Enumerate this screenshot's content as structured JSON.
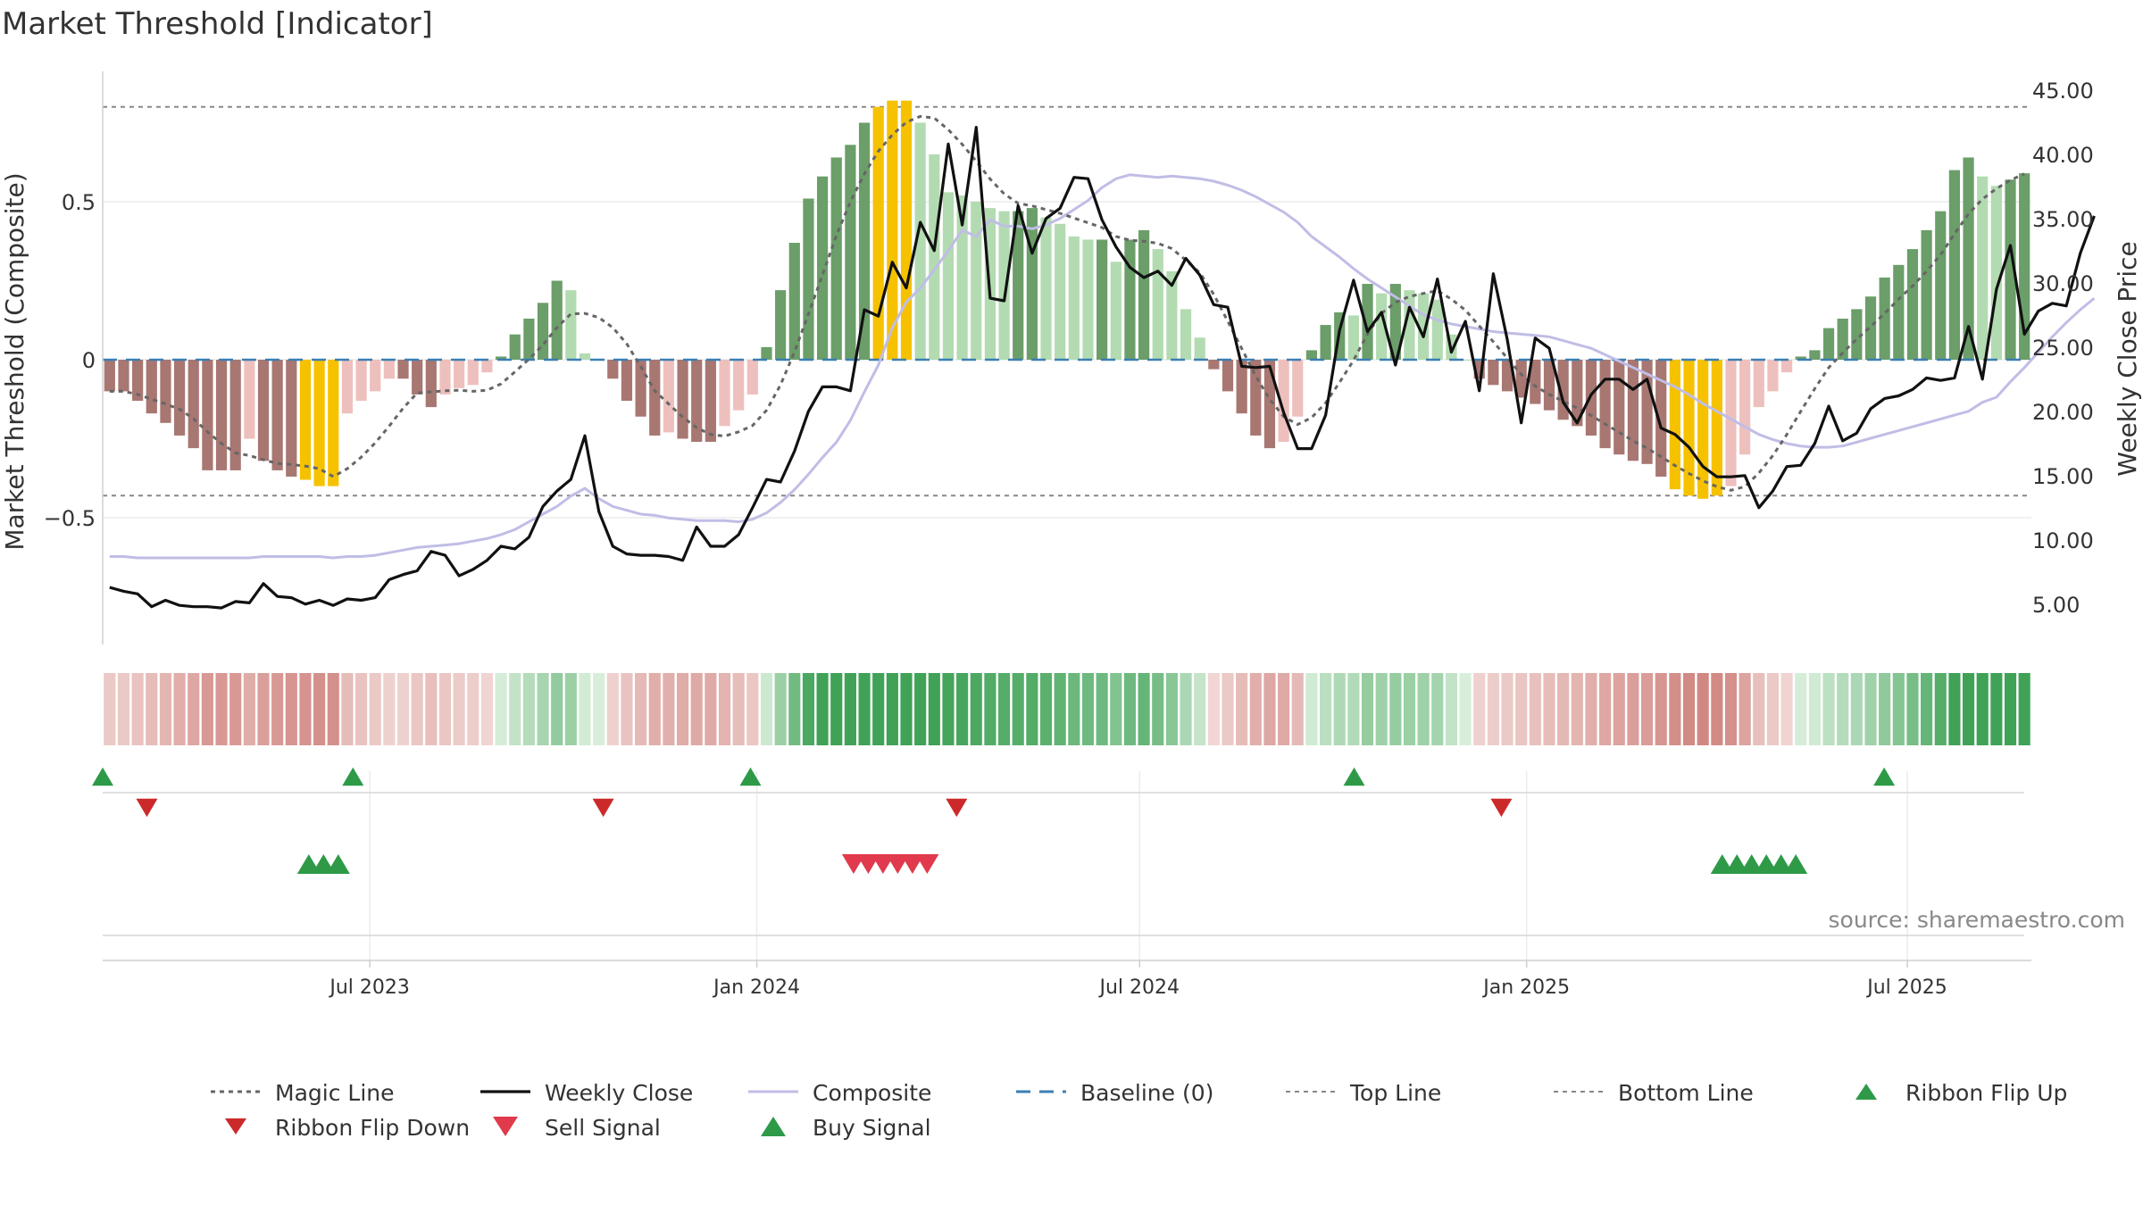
{
  "title": "Market Threshold [Indicator]",
  "source": "source: sharemaestro.com",
  "chart_data": {
    "type": "bar",
    "y_left": {
      "label": "Market Threshold (Composite)",
      "ticks": [
        {
          "value": 0.5,
          "label": "0.5"
        },
        {
          "value": 0,
          "label": "0"
        },
        {
          "value": -0.5,
          "label": "−0.5"
        }
      ],
      "range": [
        -0.9,
        0.9
      ]
    },
    "y_right": {
      "label": "Weekly Close Price",
      "ticks": [
        "45.00",
        "40.00",
        "35.00",
        "30.00",
        "25.00",
        "20.00",
        "15.00",
        "10.00",
        "5.00"
      ],
      "tick_values": [
        45,
        40,
        35,
        30,
        25,
        20,
        15,
        10,
        5
      ],
      "range": [
        2.0,
        47.0
      ]
    },
    "x_axis": {
      "start": "2023-02-24",
      "end": "2025-08-29",
      "ticks": [
        {
          "label": "Jul 2023",
          "date": "2023-07-01"
        },
        {
          "label": "Jan 2024",
          "date": "2024-01-01"
        },
        {
          "label": "Jul 2024",
          "date": "2024-07-01"
        },
        {
          "label": "Jan 2025",
          "date": "2025-01-01"
        },
        {
          "label": "Jul 2025",
          "date": "2025-07-01"
        }
      ]
    },
    "top_line": 0.8,
    "bottom_line": -0.43,
    "composite_bars": [
      -0.1,
      -0.1,
      -0.13,
      -0.17,
      -0.2,
      -0.24,
      -0.28,
      -0.35,
      -0.35,
      -0.35,
      -0.25,
      -0.32,
      -0.35,
      -0.37,
      -0.38,
      -0.4,
      -0.4,
      -0.17,
      -0.13,
      -0.1,
      -0.06,
      -0.06,
      -0.11,
      -0.15,
      -0.11,
      -0.09,
      -0.08,
      -0.04,
      0.01,
      0.08,
      0.13,
      0.18,
      0.25,
      0.22,
      0.02,
      0.0,
      -0.06,
      -0.13,
      -0.18,
      -0.24,
      -0.23,
      -0.25,
      -0.26,
      -0.26,
      -0.21,
      -0.16,
      -0.11,
      0.04,
      0.22,
      0.37,
      0.51,
      0.58,
      0.64,
      0.68,
      0.75,
      0.8,
      0.82,
      0.82,
      0.75,
      0.65,
      0.53,
      0.52,
      0.5,
      0.48,
      0.47,
      0.47,
      0.48,
      0.45,
      0.43,
      0.39,
      0.38,
      0.38,
      0.31,
      0.38,
      0.41,
      0.35,
      0.28,
      0.16,
      0.07,
      -0.03,
      -0.1,
      -0.17,
      -0.24,
      -0.28,
      -0.26,
      -0.18,
      0.03,
      0.11,
      0.15,
      0.14,
      0.24,
      0.21,
      0.24,
      0.22,
      0.21,
      0.19,
      0.08,
      0.0,
      -0.06,
      -0.08,
      -0.1,
      -0.12,
      -0.14,
      -0.16,
      -0.19,
      -0.21,
      -0.24,
      -0.28,
      -0.3,
      -0.32,
      -0.33,
      -0.37,
      -0.41,
      -0.43,
      -0.44,
      -0.43,
      -0.4,
      -0.3,
      -0.15,
      -0.1,
      -0.04,
      0.01,
      0.03,
      0.1,
      0.13,
      0.16,
      0.2,
      0.26,
      0.3,
      0.35,
      0.41,
      0.47,
      0.6,
      0.64,
      0.58,
      0.55,
      0.57,
      0.59
    ],
    "weekly_close": [
      6.3,
      6.0,
      5.8,
      4.8,
      5.3,
      4.9,
      4.8,
      4.8,
      4.7,
      5.2,
      5.1,
      6.6,
      5.6,
      5.5,
      5.0,
      5.3,
      4.9,
      5.4,
      5.3,
      5.5,
      6.9,
      7.3,
      7.6,
      9.1,
      8.8,
      7.2,
      7.7,
      8.4,
      9.5,
      9.3,
      10.2,
      12.6,
      13.8,
      14.7,
      18.1,
      12.2,
      9.5,
      8.9,
      8.8,
      8.8,
      8.7,
      8.4,
      11.0,
      9.5,
      9.5,
      10.4,
      12.5,
      14.7,
      14.5,
      16.9,
      20.0,
      21.9,
      21.9,
      21.6,
      27.9,
      27.4,
      31.6,
      29.6,
      34.7,
      32.5,
      40.8,
      34.5,
      42.1,
      28.8,
      28.6,
      36.0,
      32.3,
      35.0,
      35.8,
      38.2,
      38.1,
      34.9,
      32.8,
      31.2,
      30.4,
      30.9,
      29.8,
      31.9,
      30.6,
      28.3,
      28.1,
      23.5,
      23.4,
      23.5,
      19.9,
      17.1,
      17.1,
      19.7,
      26.3,
      30.2,
      26.2,
      27.7,
      23.6,
      28.1,
      25.8,
      30.3,
      24.6,
      27.0,
      21.6,
      30.7,
      25.6,
      19.1,
      25.7,
      24.9,
      20.7,
      19.1,
      21.3,
      22.5,
      22.5,
      21.7,
      22.5,
      18.7,
      18.2,
      17.2,
      15.7,
      14.9,
      14.9,
      15.0,
      12.5,
      13.8,
      15.7,
      15.8,
      17.5,
      20.4,
      17.7,
      18.3,
      20.2,
      21.0,
      21.2,
      21.7,
      22.6,
      22.4,
      22.6,
      26.6,
      22.5,
      29.5,
      32.9,
      26.0,
      27.8,
      28.4,
      28.2,
      32.3,
      35.2
    ],
    "composite_line": [
      8.7,
      8.7,
      8.6,
      8.6,
      8.6,
      8.6,
      8.6,
      8.6,
      8.6,
      8.6,
      8.6,
      8.7,
      8.7,
      8.7,
      8.7,
      8.7,
      8.6,
      8.7,
      8.7,
      8.8,
      9.0,
      9.2,
      9.4,
      9.5,
      9.6,
      9.7,
      9.9,
      10.1,
      10.4,
      10.8,
      11.4,
      12.0,
      12.6,
      13.4,
      14.0,
      13.2,
      12.6,
      12.3,
      12.0,
      11.9,
      11.7,
      11.6,
      11.5,
      11.5,
      11.5,
      11.4,
      11.6,
      12.1,
      12.9,
      13.9,
      15.1,
      16.4,
      17.6,
      19.3,
      21.5,
      23.6,
      26.5,
      28.5,
      29.6,
      31.0,
      32.5,
      34.1,
      33.6,
      34.9,
      34.4,
      34.4,
      34.2,
      34.5,
      35.0,
      35.7,
      36.4,
      37.4,
      38.1,
      38.4,
      38.3,
      38.2,
      38.3,
      38.2,
      38.1,
      37.9,
      37.6,
      37.2,
      36.7,
      36.1,
      35.5,
      34.7,
      33.6,
      32.8,
      32.0,
      31.1,
      30.3,
      29.6,
      28.9,
      28.2,
      27.5,
      27.1,
      26.8,
      26.6,
      26.4,
      26.2,
      26.1,
      26.0,
      25.9,
      25.8,
      25.5,
      25.2,
      24.9,
      24.4,
      23.9,
      23.4,
      22.9,
      22.4,
      21.9,
      21.3,
      20.6,
      20.0,
      19.4,
      18.8,
      18.2,
      17.8,
      17.5,
      17.3,
      17.2,
      17.2,
      17.3,
      17.6,
      17.9,
      18.2,
      18.5,
      18.8,
      19.1,
      19.4,
      19.7,
      20.0,
      20.7,
      21.1,
      22.3,
      23.4,
      24.6,
      25.8,
      26.9,
      27.9,
      28.8
    ],
    "series": [
      {
        "name": "Magic Line"
      },
      {
        "name": "Weekly Close"
      },
      {
        "name": "Composite"
      },
      {
        "name": "Baseline (0)"
      },
      {
        "name": "Top Line"
      },
      {
        "name": "Bottom Line"
      },
      {
        "name": "Ribbon Flip Up"
      },
      {
        "name": "Ribbon Flip Down"
      },
      {
        "name": "Sell Signal"
      },
      {
        "name": "Buy Signal"
      }
    ],
    "ribbon_flip_up_dates": [
      "2023-02-24",
      "2023-06-23",
      "2023-12-29",
      "2024-10-11",
      "2025-06-20"
    ],
    "ribbon_flip_down_dates": [
      "2023-03-17",
      "2023-10-20",
      "2024-04-05",
      "2024-12-20"
    ],
    "buy_signal_dates": [
      "2023-06-02",
      "2023-06-09",
      "2023-06-16",
      "2025-04-04",
      "2025-04-11",
      "2025-04-18",
      "2025-04-25",
      "2025-05-02",
      "2025-05-09"
    ],
    "sell_signal_dates": [
      "2024-02-16",
      "2024-02-23",
      "2024-03-01",
      "2024-03-08",
      "2024-03-15",
      "2024-03-22"
    ],
    "colors": {
      "bar_deep_green": "#6b9e69",
      "bar_light_green": "#b3dbb1",
      "bar_deep_red": "#a87772",
      "bar_light_red": "#eec0bd",
      "bar_gold": "#f6c200",
      "weekly_close": "#111111",
      "composite": "#c0bde6",
      "magic_line": "#666666",
      "baseline": "#3b7fb3",
      "threshold_lines": "#888888",
      "flip_up": "#2e9a48",
      "flip_down": "#cc2a2a",
      "sell_signal": "#e03a4c",
      "buy_signal": "#2e9a48"
    }
  }
}
